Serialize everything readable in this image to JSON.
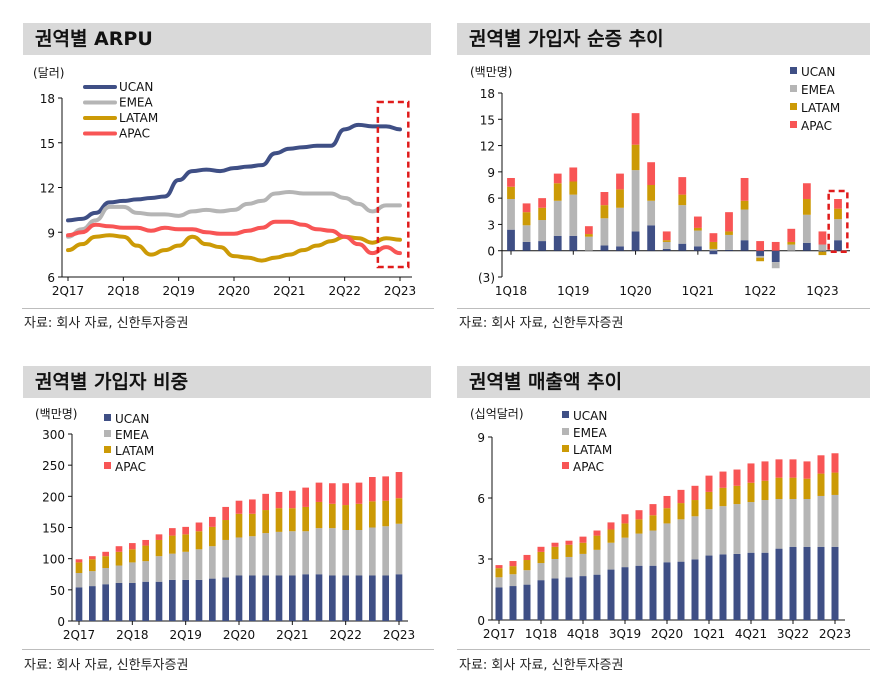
{
  "colors": {
    "UCAN": "#3f4f85",
    "EMEA": "#b5b5b5",
    "LATAM": "#cc9a06",
    "APAC": "#f85555",
    "highlight": "#e01b1b"
  },
  "source_text": "자료: 회사 자료, 신한투자증권",
  "chart_data": [
    {
      "title": "권역별 ARPU",
      "type": "line",
      "unit": "(달러)",
      "ylim": [
        6,
        18
      ],
      "yticks": [
        6,
        9,
        12,
        15,
        18
      ],
      "xticks": [
        "2Q17",
        "2Q18",
        "2Q19",
        "2Q20",
        "2Q21",
        "2Q22",
        "2Q23"
      ],
      "x": [
        "2Q17",
        "3Q17",
        "4Q17",
        "1Q18",
        "2Q18",
        "3Q18",
        "4Q18",
        "1Q19",
        "2Q19",
        "3Q19",
        "4Q19",
        "1Q20",
        "2Q20",
        "3Q20",
        "4Q20",
        "1Q21",
        "2Q21",
        "3Q21",
        "4Q21",
        "1Q22",
        "2Q22",
        "3Q22",
        "4Q22",
        "1Q23",
        "2Q23"
      ],
      "legend": "top-left",
      "highlight": [
        "1Q23",
        "2Q23"
      ],
      "series": [
        {
          "name": "UCAN",
          "values": [
            9.8,
            9.9,
            10.3,
            11.0,
            11.1,
            11.2,
            11.3,
            11.4,
            12.5,
            13.1,
            13.2,
            13.1,
            13.3,
            13.4,
            13.5,
            14.3,
            14.6,
            14.7,
            14.8,
            14.8,
            15.9,
            16.2,
            16.1,
            16.1,
            15.9
          ]
        },
        {
          "name": "EMEA",
          "values": [
            8.7,
            9.2,
            9.8,
            10.7,
            10.7,
            10.3,
            10.2,
            10.2,
            10.1,
            10.4,
            10.5,
            10.4,
            10.5,
            10.9,
            11.1,
            11.6,
            11.7,
            11.6,
            11.6,
            11.6,
            11.3,
            10.9,
            10.4,
            10.8,
            10.8
          ]
        },
        {
          "name": "LATAM",
          "values": [
            7.8,
            8.2,
            8.7,
            8.8,
            8.7,
            8.1,
            7.5,
            7.8,
            8.1,
            8.7,
            8.2,
            8.0,
            7.4,
            7.3,
            7.1,
            7.3,
            7.5,
            7.8,
            8.1,
            8.4,
            8.7,
            8.6,
            8.3,
            8.6,
            8.5
          ]
        },
        {
          "name": "APAC",
          "values": [
            8.8,
            9.0,
            9.5,
            9.4,
            9.3,
            9.3,
            9.1,
            9.3,
            9.2,
            9.2,
            9.0,
            8.9,
            8.9,
            9.1,
            9.3,
            9.7,
            9.7,
            9.5,
            9.2,
            9.1,
            8.7,
            8.2,
            7.6,
            8.0,
            7.6
          ]
        }
      ]
    },
    {
      "title": "권역별 가입자 순증 추이",
      "type": "bar",
      "stacked": true,
      "unit": "(백만명)",
      "ylim": [
        -3,
        18
      ],
      "yticks": [
        -3,
        0,
        3,
        6,
        9,
        12,
        15,
        18
      ],
      "ytick_labels": [
        "(3)",
        "0",
        "3",
        "6",
        "9",
        "12",
        "15",
        "18"
      ],
      "xticks": [
        "1Q18",
        "1Q19",
        "1Q20",
        "1Q21",
        "1Q22",
        "1Q23"
      ],
      "x": [
        "1Q18",
        "2Q18",
        "3Q18",
        "4Q18",
        "1Q19",
        "2Q19",
        "3Q19",
        "4Q19",
        "1Q20",
        "2Q20",
        "3Q20",
        "4Q20",
        "1Q21",
        "2Q21",
        "3Q21",
        "4Q21",
        "1Q22",
        "2Q22",
        "3Q22",
        "4Q22",
        "1Q23",
        "2Q23"
      ],
      "legend": "top-right",
      "highlight": [
        "2Q23"
      ],
      "series": [
        {
          "name": "UCAN",
          "values": [
            2.4,
            1.0,
            1.1,
            1.7,
            1.7,
            0.0,
            0.6,
            0.5,
            2.2,
            2.9,
            0.2,
            0.8,
            0.5,
            -0.4,
            0.1,
            1.2,
            -0.6,
            -1.3,
            0.0,
            0.9,
            -0.1,
            1.2
          ]
        },
        {
          "name": "EMEA",
          "values": [
            3.5,
            1.9,
            2.4,
            4.0,
            4.7,
            1.6,
            3.1,
            4.4,
            7.0,
            2.8,
            0.8,
            4.4,
            1.8,
            0.2,
            1.7,
            3.5,
            -0.2,
            -0.7,
            0.7,
            3.2,
            0.7,
            2.4
          ]
        },
        {
          "name": "LATAM",
          "values": [
            1.4,
            1.5,
            1.4,
            2.0,
            1.5,
            0.3,
            1.5,
            2.1,
            2.9,
            1.8,
            0.2,
            1.2,
            0.3,
            0.8,
            0.4,
            1.0,
            -0.4,
            0.0,
            0.3,
            1.8,
            -0.4,
            1.2
          ]
        },
        {
          "name": "APAC",
          "values": [
            1.0,
            1.0,
            1.1,
            1.1,
            1.6,
            0.9,
            1.5,
            1.8,
            3.6,
            2.6,
            1.0,
            2.0,
            1.3,
            1.0,
            2.2,
            2.6,
            1.1,
            1.0,
            1.5,
            1.8,
            1.5,
            1.1
          ]
        }
      ]
    },
    {
      "title": "권역별 가입자 비중",
      "type": "bar",
      "stacked": true,
      "unit": "(백만명)",
      "ylim": [
        0,
        300
      ],
      "yticks": [
        0,
        50,
        100,
        150,
        200,
        250,
        300
      ],
      "xticks": [
        "2Q17",
        "2Q18",
        "2Q19",
        "2Q20",
        "2Q21",
        "2Q22",
        "2Q23"
      ],
      "x": [
        "2Q17",
        "3Q17",
        "4Q17",
        "1Q18",
        "2Q18",
        "3Q18",
        "4Q18",
        "1Q19",
        "2Q19",
        "3Q19",
        "4Q19",
        "1Q20",
        "2Q20",
        "3Q20",
        "4Q20",
        "1Q21",
        "2Q21",
        "3Q21",
        "4Q21",
        "1Q22",
        "2Q22",
        "3Q22",
        "4Q22",
        "1Q23",
        "2Q23"
      ],
      "legend": "top-left",
      "series": [
        {
          "name": "UCAN",
          "values": [
            54,
            56,
            59,
            61,
            61,
            63,
            63,
            66,
            66,
            66,
            68,
            70,
            73,
            73,
            73,
            73,
            73,
            75,
            75,
            73,
            73,
            73,
            73,
            73,
            75
          ]
        },
        {
          "name": "EMEA",
          "values": [
            23,
            24,
            26,
            28,
            33,
            33,
            41,
            42,
            45,
            49,
            52,
            60,
            61,
            63,
            68,
            70,
            71,
            69,
            74,
            76,
            73,
            73,
            77,
            79,
            81
          ]
        },
        {
          "name": "LATAM",
          "values": [
            17,
            19,
            19,
            22,
            21,
            25,
            26,
            29,
            28,
            29,
            31,
            32,
            38,
            36,
            37,
            38,
            37,
            39,
            42,
            39,
            40,
            42,
            42,
            41,
            41
          ]
        },
        {
          "name": "APAC",
          "values": [
            5,
            5,
            7,
            9,
            10,
            9,
            9,
            12,
            12,
            14,
            16,
            21,
            21,
            23,
            26,
            26,
            28,
            31,
            31,
            33,
            35,
            34,
            39,
            39,
            42
          ]
        }
      ]
    },
    {
      "title": "권역별 매출액 추이",
      "type": "bar",
      "stacked": true,
      "unit": "(십억달러)",
      "ylim": [
        0,
        9
      ],
      "yticks": [
        0,
        3,
        6,
        9
      ],
      "xticks": [
        "2Q17",
        "1Q18",
        "4Q18",
        "3Q19",
        "2Q20",
        "1Q21",
        "4Q21",
        "3Q22",
        "2Q23"
      ],
      "x": [
        "2Q17",
        "3Q17",
        "4Q17",
        "1Q18",
        "2Q18",
        "3Q18",
        "4Q18",
        "1Q19",
        "2Q19",
        "3Q19",
        "4Q19",
        "1Q20",
        "2Q20",
        "3Q20",
        "4Q20",
        "1Q21",
        "2Q21",
        "3Q21",
        "4Q21",
        "1Q22",
        "2Q22",
        "3Q22",
        "4Q22",
        "1Q23",
        "2Q23"
      ],
      "legend": "top-left",
      "series": [
        {
          "name": "UCAN",
          "values": [
            1.6,
            1.67,
            1.74,
            1.96,
            2.04,
            2.1,
            2.16,
            2.23,
            2.48,
            2.6,
            2.67,
            2.67,
            2.84,
            2.87,
            2.98,
            3.17,
            3.23,
            3.25,
            3.31,
            3.31,
            3.51,
            3.6,
            3.6,
            3.6,
            3.6
          ]
        },
        {
          "name": "EMEA",
          "values": [
            0.5,
            0.58,
            0.71,
            0.84,
            0.96,
            1.0,
            1.09,
            1.22,
            1.32,
            1.45,
            1.58,
            1.73,
            1.91,
            2.08,
            2.12,
            2.28,
            2.37,
            2.45,
            2.49,
            2.59,
            2.44,
            2.35,
            2.35,
            2.5,
            2.55
          ]
        },
        {
          "name": "LATAM",
          "values": [
            0.45,
            0.4,
            0.5,
            0.55,
            0.6,
            0.6,
            0.55,
            0.7,
            0.65,
            0.7,
            0.7,
            0.75,
            0.75,
            0.8,
            0.8,
            0.85,
            0.9,
            0.9,
            0.95,
            0.95,
            1.05,
            1.05,
            1.0,
            1.1,
            1.1
          ]
        },
        {
          "name": "APAC",
          "values": [
            0.15,
            0.25,
            0.25,
            0.25,
            0.2,
            0.2,
            0.3,
            0.25,
            0.35,
            0.45,
            0.45,
            0.55,
            0.6,
            0.65,
            0.7,
            0.8,
            0.8,
            0.8,
            0.95,
            0.95,
            0.9,
            0.9,
            0.85,
            0.9,
            0.95
          ]
        }
      ]
    }
  ]
}
